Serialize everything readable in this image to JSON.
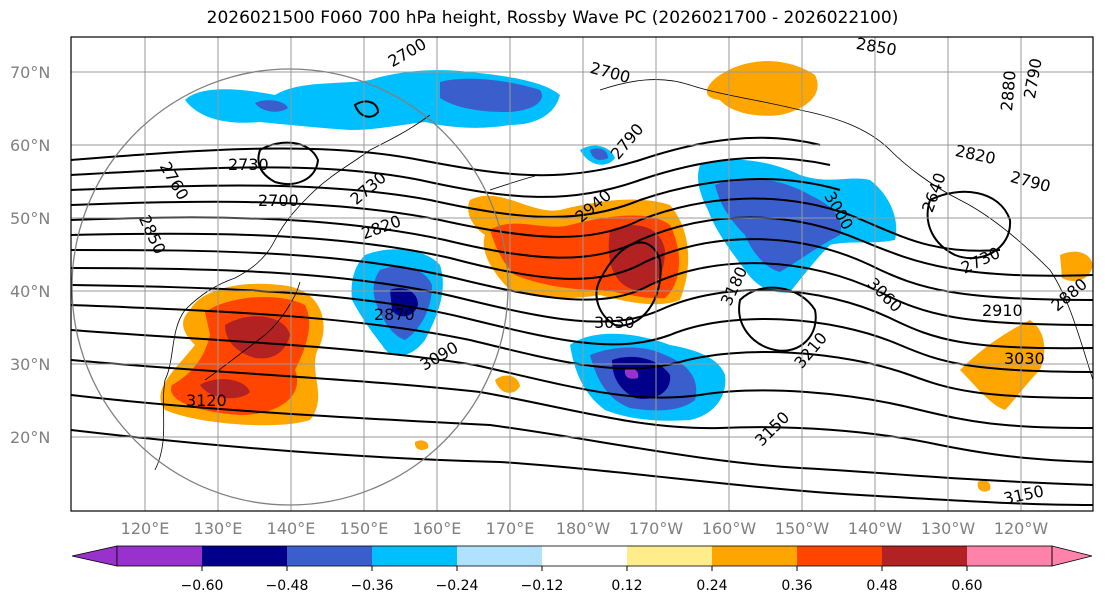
{
  "title": "2026021500 F060 700 hPa height, Rossby Wave PC (2026021700 - 2026022100)",
  "lat_labels": [
    "70°N",
    "60°N",
    "50°N",
    "40°N",
    "30°N",
    "20°N"
  ],
  "lon_labels": [
    "120°E",
    "130°E",
    "140°E",
    "150°E",
    "160°E",
    "170°E",
    "180°W",
    "170°W",
    "160°W",
    "150°W",
    "140°W",
    "130°W",
    "120°W"
  ],
  "contour_labels": [
    "2700",
    "2700",
    "2850",
    "2730",
    "2760",
    "2850",
    "2700",
    "2820",
    "2790",
    "2940",
    "2730",
    "2870",
    "3090",
    "3120",
    "3030",
    "3180",
    "3210",
    "3150",
    "3000",
    "3060",
    "2820",
    "2790",
    "2730",
    "2910",
    "3030",
    "2880",
    "3150",
    "2880",
    "2790",
    "2640"
  ],
  "colorbar": {
    "ticks": [
      "−0.60",
      "−0.48",
      "−0.36",
      "−0.24",
      "−0.12",
      "0.12",
      "0.24",
      "0.36",
      "0.48",
      "0.60"
    ],
    "colors": [
      "#9932cc",
      "#00008b",
      "#3a5fcd",
      "#00bfff",
      "#b0e2ff",
      "#ffffff",
      "#ffec8b",
      "#ffa500",
      "#ff4500",
      "#b22222",
      "#ff82ab"
    ]
  }
}
